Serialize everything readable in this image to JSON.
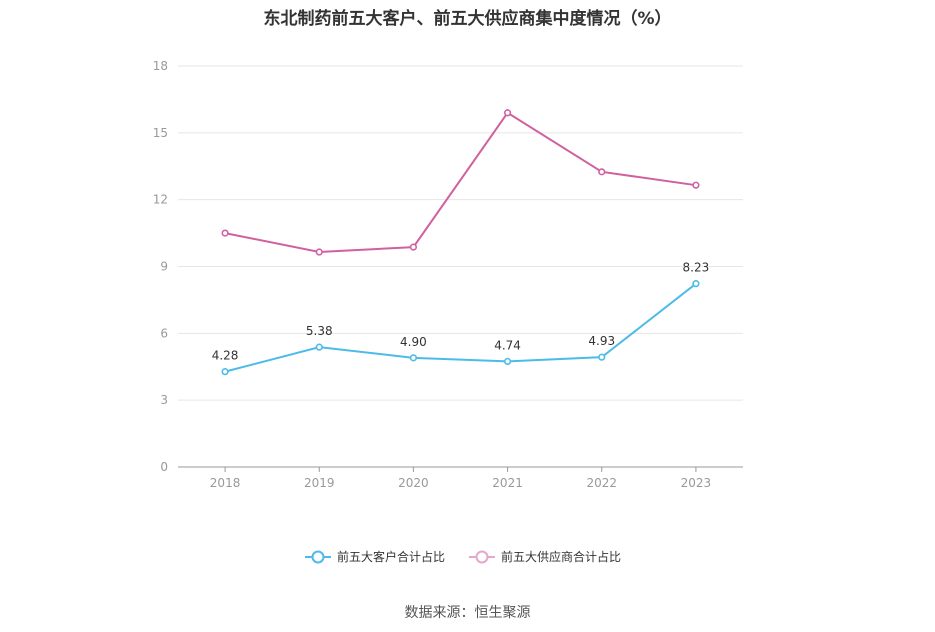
{
  "chart_data": {
    "type": "line",
    "title": "东北制药前五大客户、前五大供应商集中度情况（%）",
    "categories": [
      "2018",
      "2019",
      "2020",
      "2021",
      "2022",
      "2023"
    ],
    "series": [
      {
        "name": "前五大客户合计占比",
        "values": [
          4.28,
          5.38,
          4.9,
          4.74,
          4.93,
          8.23
        ],
        "labels": [
          "4.28",
          "5.38",
          "4.90",
          "4.74",
          "4.93",
          "8.23"
        ],
        "color": "#4dbbe8"
      },
      {
        "name": "前五大供应商合计占比",
        "values": [
          10.5,
          9.65,
          9.87,
          15.9,
          13.25,
          12.65
        ],
        "color": "#d0609f"
      }
    ],
    "yticks": [
      "0",
      "3",
      "6",
      "9",
      "12",
      "15",
      "18"
    ],
    "ylim": [
      0,
      18
    ],
    "grid": true,
    "legend": "bottom"
  },
  "source": "数据来源：恒生聚源"
}
